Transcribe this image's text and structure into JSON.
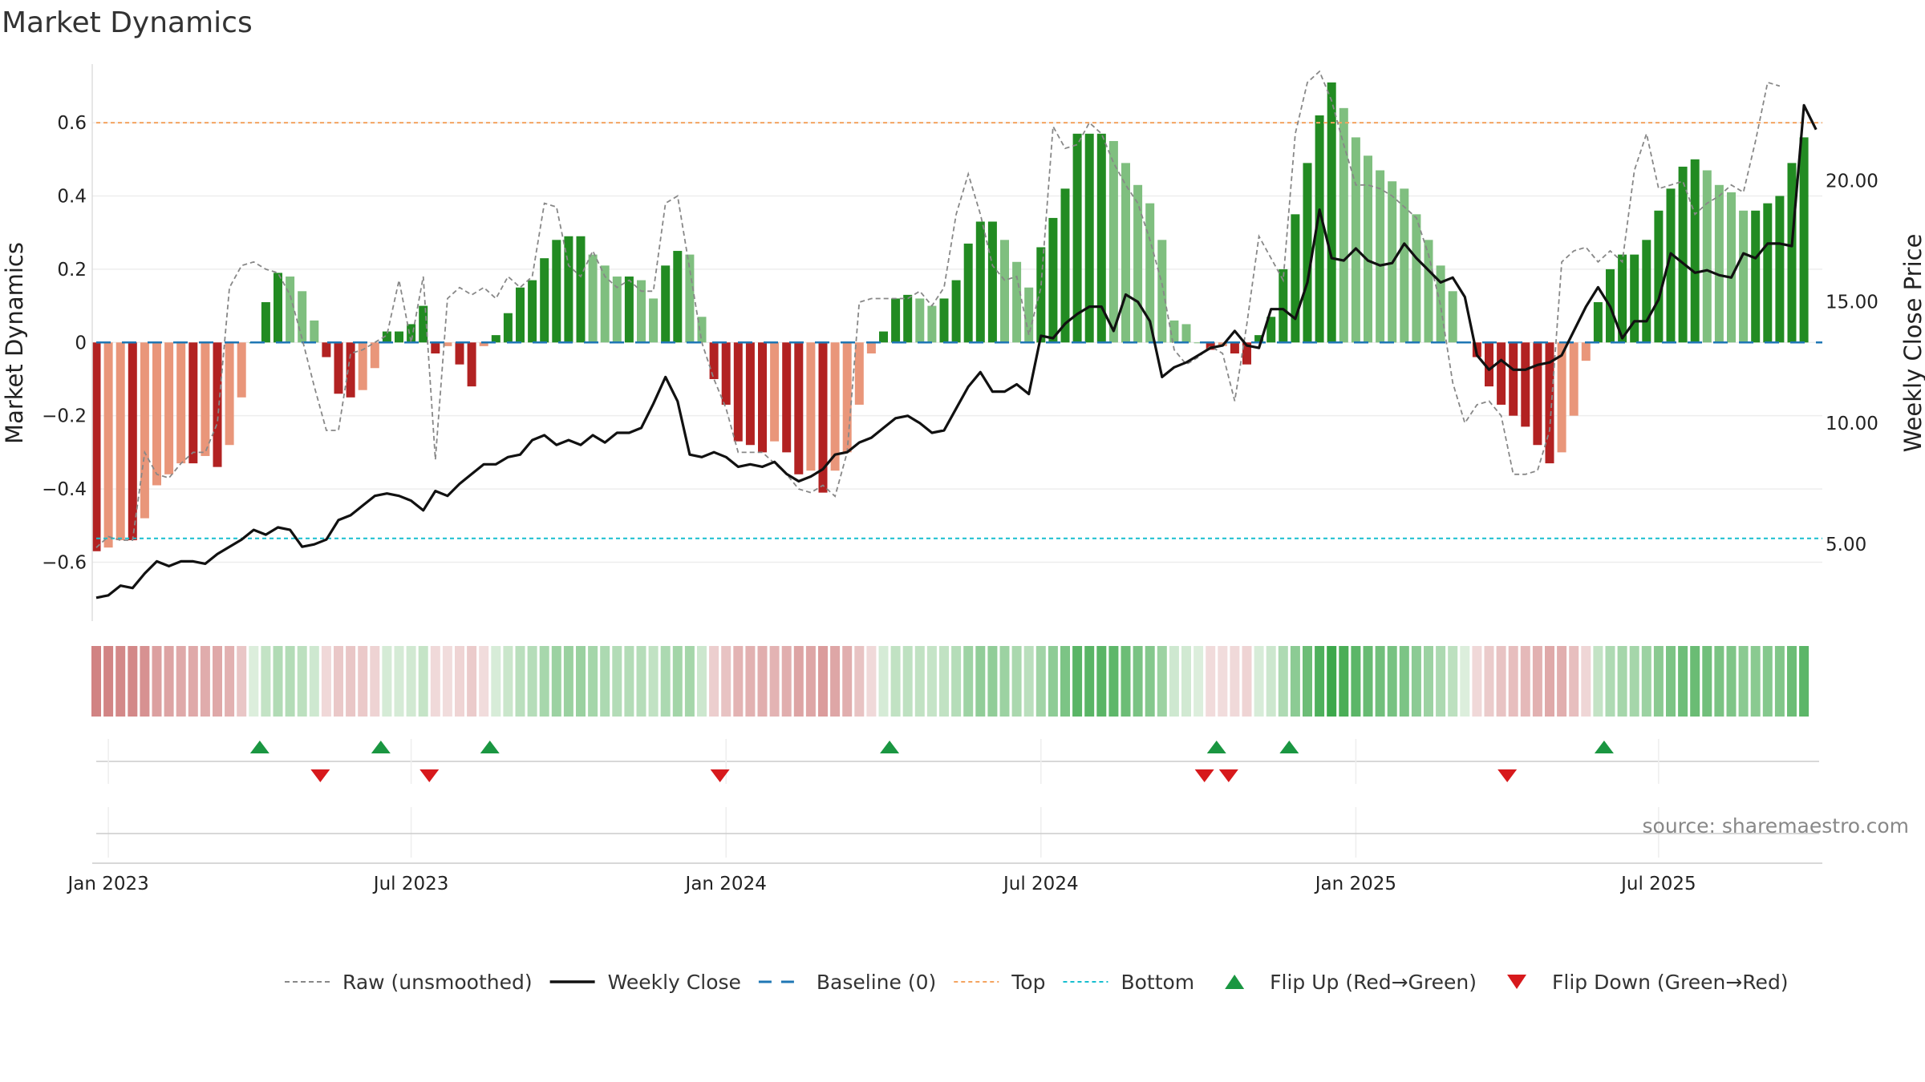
{
  "chart_data": {
    "type": "bar",
    "title": "Market Dynamics",
    "ylabel_left": "Market Dynamics",
    "ylabel_right": "Weekly Close Price",
    "source_text": "source: sharemaestro.com",
    "ylim_left": [
      -0.75,
      0.76
    ],
    "ylim_right": [
      2.0,
      24.8
    ],
    "yticks_left": [
      {
        "value": 0.6,
        "label": "0.6"
      },
      {
        "value": 0.4,
        "label": "0.4"
      },
      {
        "value": 0.2,
        "label": "0.2"
      },
      {
        "value": 0,
        "label": "0"
      },
      {
        "value": -0.2,
        "label": "−0.2"
      },
      {
        "value": -0.4,
        "label": "−0.4"
      },
      {
        "value": -0.6,
        "label": "−0.6"
      }
    ],
    "yticks_right": [
      {
        "value": 20,
        "label": "20.00"
      },
      {
        "value": 15,
        "label": "15.00"
      },
      {
        "value": 10,
        "label": "10.00"
      },
      {
        "value": 5,
        "label": "5.00"
      }
    ],
    "xticks": [
      {
        "week": 1,
        "label": "Jan 2023"
      },
      {
        "week": 26,
        "label": "Jul 2023"
      },
      {
        "week": 52,
        "label": "Jan 2024"
      },
      {
        "week": 78,
        "label": "Jul 2024"
      },
      {
        "week": 104,
        "label": "Jan 2025"
      },
      {
        "week": 129,
        "label": "Jul 2025"
      }
    ],
    "top_level": 0.6,
    "bottom_level": -0.535,
    "baseline_level": 0,
    "x_range_weeks": [
      0,
      141
    ],
    "colors": {
      "strong_green": "#228b22",
      "light_green": "#7fbf7f",
      "strong_red": "#b22222",
      "light_red": "#e9967a",
      "raw": "#888888",
      "close": "#111111",
      "baseline": "#1f77b4",
      "top": "#f4a460",
      "bottom": "#17becf",
      "flip_up": "#1a9641",
      "flip_down": "#d7191c"
    },
    "series": [
      {
        "name": "Market Dynamics",
        "unit": "left",
        "values": [
          -0.57,
          -0.56,
          -0.54,
          -0.54,
          -0.48,
          -0.39,
          -0.36,
          -0.33,
          -0.33,
          -0.31,
          -0.34,
          -0.28,
          -0.15,
          0.0,
          0.11,
          0.19,
          0.18,
          0.14,
          0.06,
          -0.04,
          -0.14,
          -0.15,
          -0.13,
          -0.07,
          0.03,
          0.03,
          0.05,
          0.1,
          -0.03,
          -0.01,
          -0.06,
          -0.12,
          -0.01,
          0.02,
          0.08,
          0.15,
          0.17,
          0.23,
          0.28,
          0.29,
          0.29,
          0.24,
          0.21,
          0.18,
          0.18,
          0.17,
          0.12,
          0.21,
          0.25,
          0.24,
          0.07,
          -0.1,
          -0.17,
          -0.27,
          -0.28,
          -0.3,
          -0.27,
          -0.3,
          -0.36,
          -0.35,
          -0.41,
          -0.35,
          -0.3,
          -0.17,
          -0.03,
          0.03,
          0.12,
          0.13,
          0.12,
          0.1,
          0.12,
          0.17,
          0.27,
          0.33,
          0.33,
          0.28,
          0.22,
          0.15,
          0.26,
          0.34,
          0.42,
          0.57,
          0.57,
          0.57,
          0.55,
          0.49,
          0.43,
          0.38,
          0.28,
          0.06,
          0.05,
          0.0,
          -0.02,
          -0.01,
          -0.03,
          -0.06,
          0.02,
          0.07,
          0.2,
          0.35,
          0.49,
          0.62,
          0.71,
          0.64,
          0.56,
          0.51,
          0.47,
          0.44,
          0.42,
          0.35,
          0.28,
          0.21,
          0.14,
          0.0,
          -0.04,
          -0.12,
          -0.17,
          -0.2,
          -0.23,
          -0.28,
          -0.33,
          -0.3,
          -0.2,
          -0.05,
          0.11,
          0.2,
          0.24,
          0.24,
          0.28,
          0.36,
          0.42,
          0.48,
          0.5,
          0.47,
          0.43,
          0.41,
          0.36,
          0.36,
          0.38,
          0.4,
          0.49,
          0.56
        ]
      },
      {
        "name": "Raw (unsmoothed)",
        "unit": "left",
        "values": [
          -0.56,
          -0.53,
          -0.54,
          -0.54,
          -0.3,
          -0.36,
          -0.37,
          -0.33,
          -0.3,
          -0.3,
          -0.22,
          0.15,
          0.21,
          0.22,
          0.2,
          0.19,
          0.13,
          0.01,
          -0.12,
          -0.24,
          -0.24,
          -0.03,
          -0.02,
          0.0,
          0.02,
          0.17,
          0.0,
          0.18,
          -0.32,
          0.12,
          0.15,
          0.13,
          0.15,
          0.12,
          0.18,
          0.15,
          0.18,
          0.38,
          0.37,
          0.21,
          0.18,
          0.25,
          0.18,
          0.15,
          0.17,
          0.14,
          0.14,
          0.38,
          0.4,
          0.2,
          0.0,
          -0.1,
          -0.18,
          -0.3,
          -0.3,
          -0.3,
          -0.33,
          -0.36,
          -0.4,
          -0.41,
          -0.39,
          -0.42,
          -0.3,
          0.11,
          0.12,
          0.12,
          0.12,
          0.12,
          0.14,
          0.1,
          0.15,
          0.35,
          0.46,
          0.35,
          0.21,
          0.17,
          0.18,
          0.02,
          0.15,
          0.59,
          0.53,
          0.54,
          0.6,
          0.57,
          0.49,
          0.43,
          0.38,
          0.28,
          0.16,
          -0.02,
          -0.06,
          -0.04,
          -0.01,
          -0.03,
          -0.16,
          0.05,
          0.29,
          0.23,
          0.17,
          0.57,
          0.71,
          0.74,
          0.66,
          0.54,
          0.43,
          0.43,
          0.42,
          0.4,
          0.37,
          0.34,
          0.24,
          0.1,
          -0.11,
          -0.22,
          -0.17,
          -0.16,
          -0.2,
          -0.36,
          -0.36,
          -0.35,
          -0.24,
          0.22,
          0.25,
          0.26,
          0.22,
          0.25,
          0.22,
          0.47,
          0.57,
          0.42,
          0.43,
          0.44,
          0.35,
          0.38,
          0.4,
          0.43,
          0.41,
          0.55,
          0.71,
          0.7
        ]
      },
      {
        "name": "Weekly Close",
        "unit": "right",
        "values": [
          2.8,
          2.9,
          3.3,
          3.2,
          3.8,
          4.3,
          4.1,
          4.3,
          4.3,
          4.2,
          4.6,
          4.9,
          5.2,
          5.6,
          5.4,
          5.7,
          5.6,
          4.9,
          5.0,
          5.2,
          6.0,
          6.2,
          6.6,
          7.0,
          7.1,
          7.0,
          6.8,
          6.4,
          7.2,
          7.0,
          7.5,
          7.9,
          8.3,
          8.3,
          8.6,
          8.7,
          9.3,
          9.5,
          9.1,
          9.3,
          9.1,
          9.5,
          9.2,
          9.6,
          9.6,
          9.8,
          10.8,
          11.9,
          10.9,
          8.7,
          8.6,
          8.8,
          8.6,
          8.2,
          8.3,
          8.2,
          8.4,
          7.9,
          7.6,
          7.8,
          8.1,
          8.7,
          8.8,
          9.2,
          9.4,
          9.8,
          10.2,
          10.3,
          10.0,
          9.6,
          9.7,
          10.6,
          11.5,
          12.1,
          11.3,
          11.3,
          11.6,
          11.2,
          13.6,
          13.5,
          14.1,
          14.5,
          14.8,
          14.8,
          13.8,
          15.3,
          15.0,
          14.2,
          11.9,
          12.3,
          12.5,
          12.8,
          13.1,
          13.2,
          13.8,
          13.2,
          13.1,
          14.7,
          14.7,
          14.3,
          15.8,
          18.8,
          16.8,
          16.7,
          17.2,
          16.7,
          16.5,
          16.6,
          17.4,
          16.8,
          16.3,
          15.8,
          16.0,
          15.2,
          12.8,
          12.2,
          12.6,
          12.2,
          12.2,
          12.4,
          12.5,
          12.8,
          13.8,
          14.8,
          15.6,
          14.8,
          13.5,
          14.2,
          14.2,
          15.1,
          17.0,
          16.6,
          16.2,
          16.3,
          16.1,
          16.0,
          17.0,
          16.8,
          17.4,
          17.4,
          17.3,
          23.1,
          22.1
        ]
      }
    ],
    "regime_strip": [
      "-0.57",
      "-0.56",
      "-0.54",
      "-0.54",
      "-0.48",
      "-0.39",
      "-0.36",
      "-0.33",
      "-0.33",
      "-0.31",
      "-0.34",
      "-0.28",
      "-0.15",
      "0.0",
      "0.11",
      "0.19",
      "0.18",
      "0.14",
      "0.06",
      "-0.04",
      "-0.14",
      "-0.15",
      "-0.13",
      "-0.07",
      "0.03",
      "0.03",
      "0.05",
      "0.1",
      "-0.03",
      "-0.01",
      "-0.06",
      "-0.12",
      "-0.01",
      "0.02",
      "0.08",
      "0.15",
      "0.17",
      "0.23",
      "0.28",
      "0.29",
      "0.29",
      "0.24",
      "0.21",
      "0.18",
      "0.18",
      "0.17",
      "0.12",
      "0.21",
      "0.25",
      "0.24",
      "0.07",
      "-0.1",
      "-0.17",
      "-0.27",
      "-0.28",
      "-0.3",
      "-0.27",
      "-0.3",
      "-0.36",
      "-0.35",
      "-0.41",
      "-0.35",
      "-0.3",
      "-0.17",
      "-0.03",
      "0.03",
      "0.12",
      "0.13",
      "0.12",
      "0.1",
      "0.12",
      "0.17",
      "0.27",
      "0.33",
      "0.33",
      "0.28",
      "0.22",
      "0.15",
      "0.26",
      "0.34",
      "0.42",
      "0.57",
      "0.57",
      "0.57",
      "0.55",
      "0.49",
      "0.43",
      "0.38",
      "0.28",
      "0.06",
      "0.05",
      "0.0",
      "-0.02",
      "-0.01",
      "-0.03",
      "-0.06",
      "0.02",
      "0.07",
      "0.2",
      "0.35",
      "0.49",
      "0.62",
      "0.71",
      "0.64",
      "0.56",
      "0.51",
      "0.47",
      "0.44",
      "0.42",
      "0.35",
      "0.28",
      "0.21",
      "0.14",
      "0.0",
      "-0.04",
      "-0.12",
      "-0.17",
      "-0.2",
      "-0.23",
      "-0.28",
      "-0.33",
      "-0.3",
      "-0.2",
      "-0.05",
      "0.11",
      "0.2",
      "0.24",
      "0.24",
      "0.28",
      "0.36",
      "0.42",
      "0.48",
      "0.5",
      "0.47",
      "0.43",
      "0.41",
      "0.36",
      "0.36",
      "0.38",
      "0.4",
      "0.49",
      "0.56"
    ],
    "flip_up_weeks": [
      13.5,
      23.5,
      32.5,
      65.5,
      92.5,
      98.5,
      124.5
    ],
    "flip_down_weeks": [
      18.5,
      27.5,
      51.5,
      91.5,
      93.5,
      116.5
    ],
    "legend": [
      {
        "key": "raw",
        "label": "Raw (unsmoothed)"
      },
      {
        "key": "close",
        "label": "Weekly Close"
      },
      {
        "key": "baseline",
        "label": "Baseline (0)"
      },
      {
        "key": "top",
        "label": "Top"
      },
      {
        "key": "bottom",
        "label": "Bottom"
      },
      {
        "key": "flip_up",
        "label": "Flip Up (Red→Green)"
      },
      {
        "key": "flip_down",
        "label": "Flip Down (Green→Red)"
      }
    ]
  }
}
